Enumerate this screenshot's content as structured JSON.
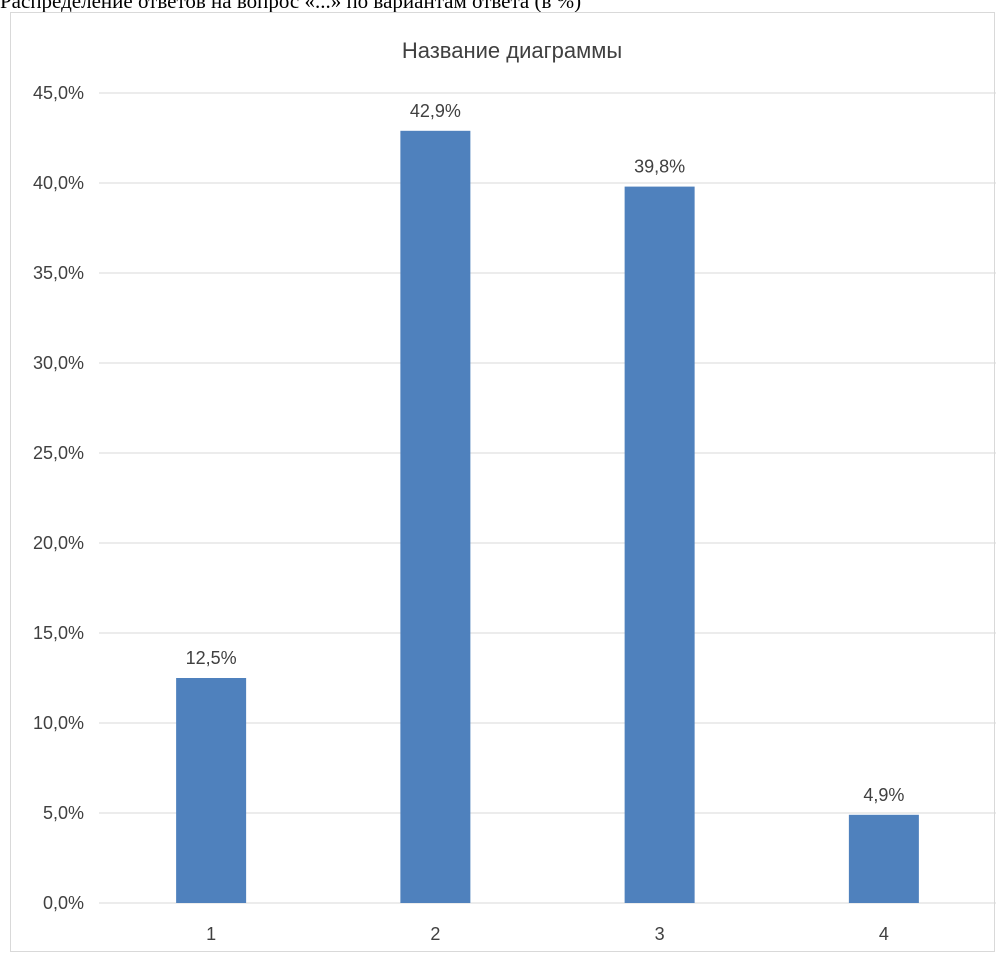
{
  "header_text": "Распределение ответов на вопрос «...» по вариантам ответа (в %)",
  "chart_data": {
    "type": "bar",
    "title": "Название диаграммы",
    "categories": [
      "1",
      "2",
      "3",
      "4"
    ],
    "values": [
      12.5,
      42.9,
      39.8,
      4.9
    ],
    "value_labels": [
      "12,5%",
      "42,9%",
      "39,8%",
      "4,9%"
    ],
    "y_ticks": [
      "0,0%",
      "5,0%",
      "10,0%",
      "15,0%",
      "20,0%",
      "25,0%",
      "30,0%",
      "35,0%",
      "40,0%",
      "45,0%"
    ],
    "ylim": [
      0,
      45
    ],
    "y_step": 5,
    "xlabel": "",
    "ylabel": "",
    "grid": true,
    "bar_color": "#4f81bd",
    "grid_color": "#d9d9d9",
    "text_color": "#404040"
  }
}
